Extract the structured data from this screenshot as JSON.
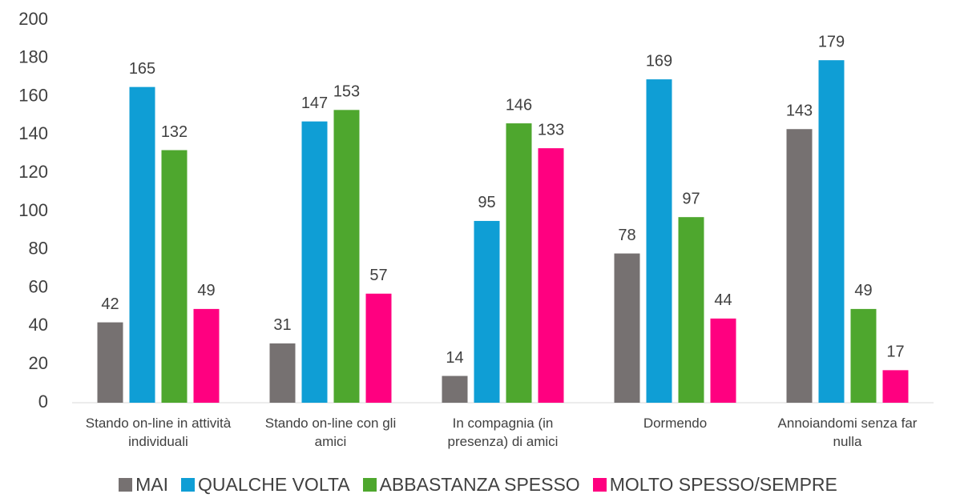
{
  "chart_data": {
    "type": "bar",
    "categories": [
      "Stando on-line in attività individuali",
      "Stando on-line con gli amici",
      "In compagnia (in presenza) di amici",
      "Dormendo",
      "Annoiandomi senza far nulla"
    ],
    "series": [
      {
        "name": "MAI",
        "color": "#767171",
        "values": [
          42,
          31,
          14,
          78,
          143
        ]
      },
      {
        "name": "QUALCHE VOLTA",
        "color": "#0f9ed5",
        "values": [
          165,
          147,
          95,
          169,
          179
        ]
      },
      {
        "name": "ABBASTANZA SPESSO",
        "color": "#4ea72e",
        "values": [
          132,
          153,
          146,
          97,
          49
        ]
      },
      {
        "name": "MOLTO SPESSO/SEMPRE",
        "color": "#ff0080",
        "values": [
          49,
          57,
          133,
          44,
          17
        ]
      }
    ],
    "ylim": [
      0,
      200
    ],
    "yticks": [
      0,
      20,
      40,
      60,
      80,
      100,
      120,
      140,
      160,
      180,
      200
    ],
    "grid": false,
    "legend": "bottom"
  }
}
